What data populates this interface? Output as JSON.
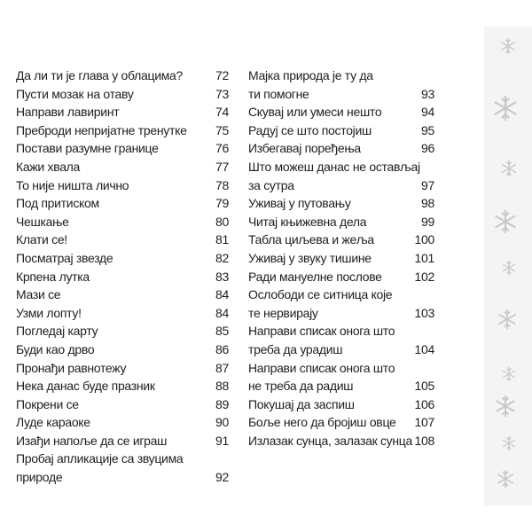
{
  "left_column": {
    "entries": [
      {
        "lines": [
          "Да ли ти је глава у облацима?"
        ],
        "page": 72
      },
      {
        "lines": [
          "Пусти мозак на отаву"
        ],
        "page": 73
      },
      {
        "lines": [
          "Направи лавиринт"
        ],
        "page": 74
      },
      {
        "lines": [
          "Преброди непријатне тренутке"
        ],
        "page": 75
      },
      {
        "lines": [
          "Постави разумне границе"
        ],
        "page": 76
      },
      {
        "lines": [
          "Кажи хвала"
        ],
        "page": 77
      },
      {
        "lines": [
          "То није ништа лично"
        ],
        "page": 78
      },
      {
        "lines": [
          "Под притиском"
        ],
        "page": 79
      },
      {
        "lines": [
          "Чешкање"
        ],
        "page": 80
      },
      {
        "lines": [
          "Клати се!"
        ],
        "page": 81
      },
      {
        "lines": [
          "Посматрај звезде"
        ],
        "page": 82
      },
      {
        "lines": [
          "Крпена лутка"
        ],
        "page": 83
      },
      {
        "lines": [
          "Мази се"
        ],
        "page": 84
      },
      {
        "lines": [
          "Узми лопту!"
        ],
        "page": 84
      },
      {
        "lines": [
          "Погледај карту"
        ],
        "page": 85
      },
      {
        "lines": [
          "Буди као дрво"
        ],
        "page": 86
      },
      {
        "lines": [
          "Пронађи равнотежу"
        ],
        "page": 87
      },
      {
        "lines": [
          "Нека данас буде празник"
        ],
        "page": 88
      },
      {
        "lines": [
          "Покрени се"
        ],
        "page": 89
      },
      {
        "lines": [
          "Луде караоке"
        ],
        "page": 90
      },
      {
        "lines": [
          "Изађи напоље да се играш"
        ],
        "page": 91
      },
      {
        "lines": [
          "Пробај апликације са звуцима",
          "природе"
        ],
        "page": 92
      }
    ]
  },
  "right_column": {
    "entries": [
      {
        "lines": [
          "Мајка природа је ту да",
          "ти помогне"
        ],
        "page": 93
      },
      {
        "lines": [
          "Скувај или умеси нешто"
        ],
        "page": 94
      },
      {
        "lines": [
          "Радуј се што постојиш"
        ],
        "page": 95
      },
      {
        "lines": [
          "Избегавај поређења"
        ],
        "page": 96
      },
      {
        "lines": [
          "Што можеш данас не остављај",
          "за сутра"
        ],
        "page": 97
      },
      {
        "lines": [
          "Уживај у путовању"
        ],
        "page": 98
      },
      {
        "lines": [
          "Читај књижевна дела"
        ],
        "page": 99
      },
      {
        "lines": [
          "Табла циљева и жеља"
        ],
        "page": 100
      },
      {
        "lines": [
          "Уживај у звуку тишине"
        ],
        "page": 101
      },
      {
        "lines": [
          "Ради мануелне послове"
        ],
        "page": 102
      },
      {
        "lines": [
          "Ослободи се ситница које",
          "те нервирају"
        ],
        "page": 103
      },
      {
        "lines": [
          "Направи списак онога што",
          "треба да урадиш"
        ],
        "page": 104
      },
      {
        "lines": [
          "Направи списак онога што",
          "не треба да радиш"
        ],
        "page": 105
      },
      {
        "lines": [
          "Покушај да заспиш"
        ],
        "page": 106
      },
      {
        "lines": [
          "Боље него да бројиш овце"
        ],
        "page": 107
      },
      {
        "lines": [
          "Излазак сунца, залазак сунца"
        ],
        "page": 108
      }
    ]
  }
}
